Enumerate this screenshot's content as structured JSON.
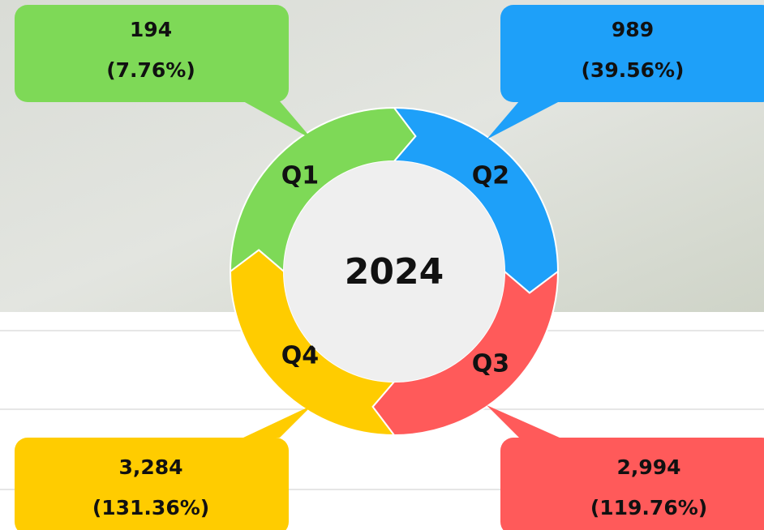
{
  "center": "2024",
  "quarters": [
    {
      "label": "Q1",
      "value": "194",
      "percent": "(7.76%)"
    },
    {
      "label": "Q2",
      "value": "989",
      "percent": "(39.56%)"
    },
    {
      "label": "Q3",
      "value": "2,994",
      "percent": "(119.76%)"
    },
    {
      "label": "Q4",
      "value": "3,284",
      "percent": "(131.36%)"
    }
  ]
}
